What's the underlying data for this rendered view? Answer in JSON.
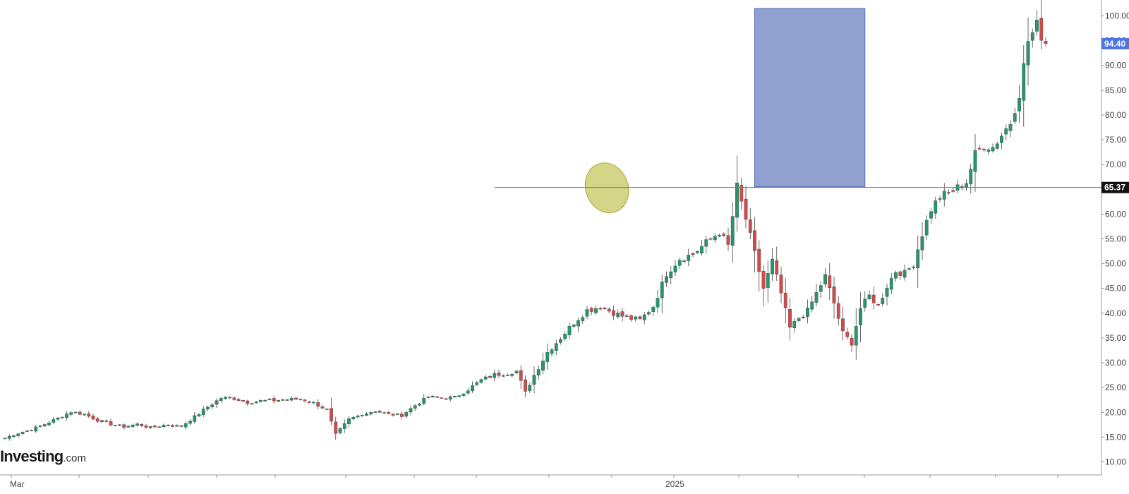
{
  "brand": {
    "name": "Investing",
    "suffix": ".com"
  },
  "chart_data": {
    "type": "candlestick",
    "title": "",
    "xlabel": "",
    "ylabel": "",
    "ylim": [
      8.5,
      101.5
    ],
    "grid": false,
    "y_ticks": [
      "10.00",
      "15.00",
      "20.00",
      "25.00",
      "30.00",
      "35.00",
      "40.00",
      "45.00",
      "50.00",
      "55.00",
      "60.00",
      "65.00",
      "70.00",
      "75.00",
      "80.00",
      "85.00",
      "90.00",
      "95.00",
      "100.00"
    ],
    "x_labels": [
      "Mar",
      "2025"
    ],
    "price_labels": [
      {
        "text": "94.40",
        "value": 94.4,
        "color": "#4c74e4"
      },
      {
        "text": "65.37",
        "value": 65.37,
        "color": "#111111"
      }
    ],
    "annotations": {
      "horizontal_line": {
        "value": 65.37,
        "start_index": 111
      },
      "ellipse": {
        "center_index": 136.5,
        "center_value": 65.3,
        "color": "#c6c75d"
      },
      "rectangle": {
        "start_index": 170,
        "end_index": 195,
        "low": 65.5,
        "high": 101.5,
        "color": "#7d8fc7"
      }
    },
    "colors": {
      "up": "#26966c",
      "down": "#cf4c4c"
    },
    "candle_count": 190,
    "close_anchors": [
      [
        0,
        14.8
      ],
      [
        3,
        15.8
      ],
      [
        6,
        16.5
      ],
      [
        9,
        17.6
      ],
      [
        12,
        18.8
      ],
      [
        15,
        20.1
      ],
      [
        18,
        19.6
      ],
      [
        21,
        18.4
      ],
      [
        24,
        17.6
      ],
      [
        27,
        17.1
      ],
      [
        30,
        17.6
      ],
      [
        33,
        16.9
      ],
      [
        36,
        17.4
      ],
      [
        40,
        17.2
      ],
      [
        43,
        19.1
      ],
      [
        46,
        21.1
      ],
      [
        49,
        22.9
      ],
      [
        52,
        22.8
      ],
      [
        55,
        22.0
      ],
      [
        58,
        22.3
      ],
      [
        61,
        22.4
      ],
      [
        64,
        22.6
      ],
      [
        67,
        22.7
      ],
      [
        70,
        21.9
      ],
      [
        73,
        20.5
      ],
      [
        75,
        15.5
      ],
      [
        78,
        18.6
      ],
      [
        81,
        19.6
      ],
      [
        84,
        20.3
      ],
      [
        87,
        19.6
      ],
      [
        90,
        19.4
      ],
      [
        93,
        21.4
      ],
      [
        96,
        23.1
      ],
      [
        99,
        22.9
      ],
      [
        102,
        23.0
      ],
      [
        105,
        24.6
      ],
      [
        108,
        26.5
      ],
      [
        111,
        27.6
      ],
      [
        114,
        27.9
      ],
      [
        116,
        28.3
      ],
      [
        118,
        24.0
      ],
      [
        120,
        27.5
      ],
      [
        123,
        32.1
      ],
      [
        126,
        35.0
      ],
      [
        129,
        38.1
      ],
      [
        132,
        40.6
      ],
      [
        135,
        41.3
      ],
      [
        138,
        40.1
      ],
      [
        141,
        39.1
      ],
      [
        144,
        38.6
      ],
      [
        147,
        41.4
      ],
      [
        150,
        48.0
      ],
      [
        153,
        51.0
      ],
      [
        156,
        51.9
      ],
      [
        159,
        54.2
      ],
      [
        162,
        56.4
      ],
      [
        164,
        53.6
      ],
      [
        166,
        65.5
      ],
      [
        168,
        59.0
      ],
      [
        170,
        52.0
      ],
      [
        172,
        45.0
      ],
      [
        174,
        50.5
      ],
      [
        176,
        44.0
      ],
      [
        178,
        37.0
      ],
      [
        180,
        39.0
      ],
      [
        182,
        40.5
      ],
      [
        184,
        44.0
      ],
      [
        186,
        47.5
      ],
      [
        188,
        42.0
      ],
      [
        190,
        36.0
      ],
      [
        192,
        34.0
      ],
      [
        194,
        41.0
      ],
      [
        196,
        43.5
      ],
      [
        198,
        41.5
      ],
      [
        200,
        45.5
      ],
      [
        202,
        48.5
      ],
      [
        204,
        48.0
      ],
      [
        206,
        50.0
      ],
      [
        208,
        56.0
      ],
      [
        210,
        61.0
      ],
      [
        212,
        63.5
      ],
      [
        214,
        64.2
      ],
      [
        216,
        65.3
      ],
      [
        218,
        66.5
      ],
      [
        220,
        72.0
      ],
      [
        222,
        74.0
      ],
      [
        224,
        73.5
      ],
      [
        226,
        76.0
      ],
      [
        228,
        78.5
      ],
      [
        230,
        84.5
      ],
      [
        232,
        95.0
      ],
      [
        234,
        98.0
      ],
      [
        236,
        94.4
      ]
    ]
  }
}
